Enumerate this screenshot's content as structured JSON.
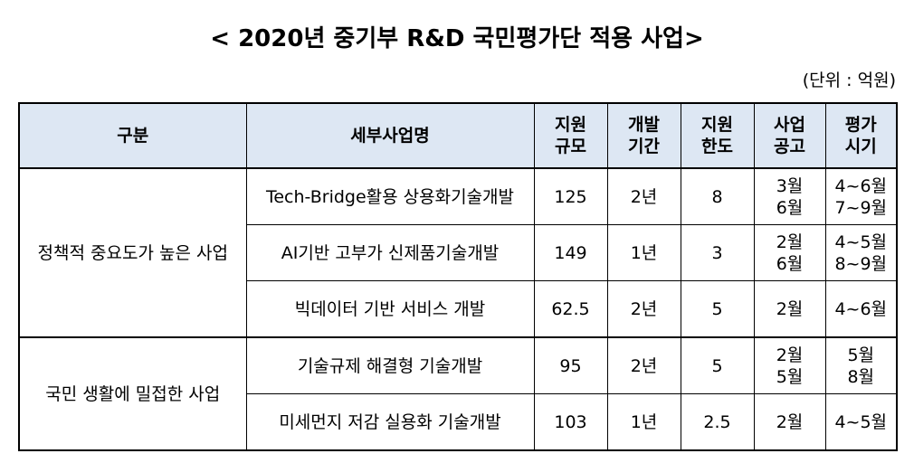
{
  "title": "< 2020년 중기부 R&D 국민평가단 적용 사업>",
  "unit": "(단위 : 억원)",
  "headers": {
    "category": "구분",
    "program": "세부사업명",
    "scale": [
      "지원",
      "규모"
    ],
    "period": [
      "개발",
      "기간"
    ],
    "limit": [
      "지원",
      "한도"
    ],
    "notice": [
      "사업",
      "공고"
    ],
    "evaluation": [
      "평가",
      "시기"
    ]
  },
  "groups": [
    {
      "category": "정책적 중요도가 높은 사업",
      "rows": [
        {
          "program": "Tech-Bridge활용 상용화기술개발",
          "scale": "125",
          "period": "2년",
          "limit": "8",
          "notice": [
            "3월",
            "6월"
          ],
          "evaluation": [
            "4~6월",
            "7~9월"
          ]
        },
        {
          "program": "AI기반 고부가 신제품기술개발",
          "scale": "149",
          "period": "1년",
          "limit": "3",
          "notice": [
            "2월",
            "6월"
          ],
          "evaluation": [
            "4~5월",
            "8~9월"
          ]
        },
        {
          "program": "빅데이터 기반 서비스 개발",
          "scale": "62.5",
          "period": "2년",
          "limit": "5",
          "notice": [
            "2월"
          ],
          "evaluation": [
            "4~6월"
          ]
        }
      ]
    },
    {
      "category": "국민 생활에 밀접한 사업",
      "rows": [
        {
          "program": "기술규제 해결형 기술개발",
          "scale": "95",
          "period": "2년",
          "limit": "5",
          "notice": [
            "2월",
            "5월"
          ],
          "evaluation": [
            "5월",
            "8월"
          ]
        },
        {
          "program": "미세먼지 저감 실용화 기술개발",
          "scale": "103",
          "period": "1년",
          "limit": "2.5",
          "notice": [
            "2월"
          ],
          "evaluation": [
            "4~5월"
          ]
        }
      ]
    }
  ]
}
